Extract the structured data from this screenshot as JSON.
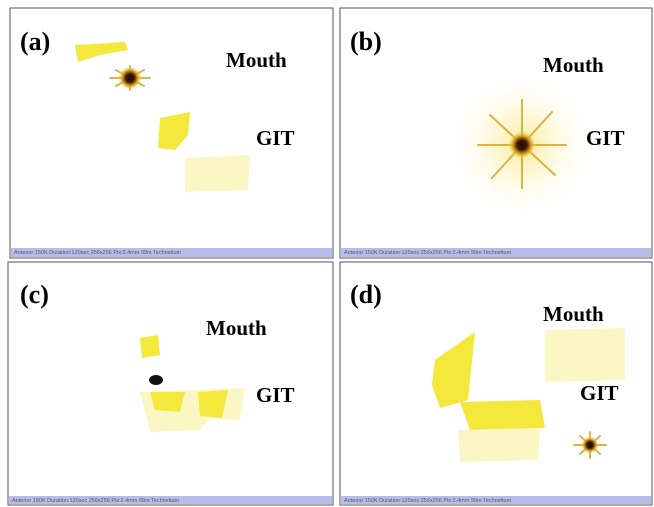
{
  "panels": [
    {
      "label": "(a)",
      "mouth": "Mouth",
      "git": "GIT",
      "footer": "Anterior 150K Duration:120sec 256x256 Pix:2.4mm 99m Technetium"
    },
    {
      "label": "(b)",
      "mouth": "Mouth",
      "git": "GIT",
      "footer": "Anterior 150K Duration:120sec 256x256 Pix:2.4mm 99m Technetium"
    },
    {
      "label": "(c)",
      "mouth": "Mouth",
      "git": "GIT",
      "footer": "Anterior 150K Duration:120sec 256x256 Pix:2.4mm 99m Technetium"
    },
    {
      "label": "(d)",
      "mouth": "Mouth",
      "git": "GIT",
      "footer": "Anterior 150K Duration:120sec 256x256 Pix:2.4mm 99m Technetium"
    }
  ]
}
